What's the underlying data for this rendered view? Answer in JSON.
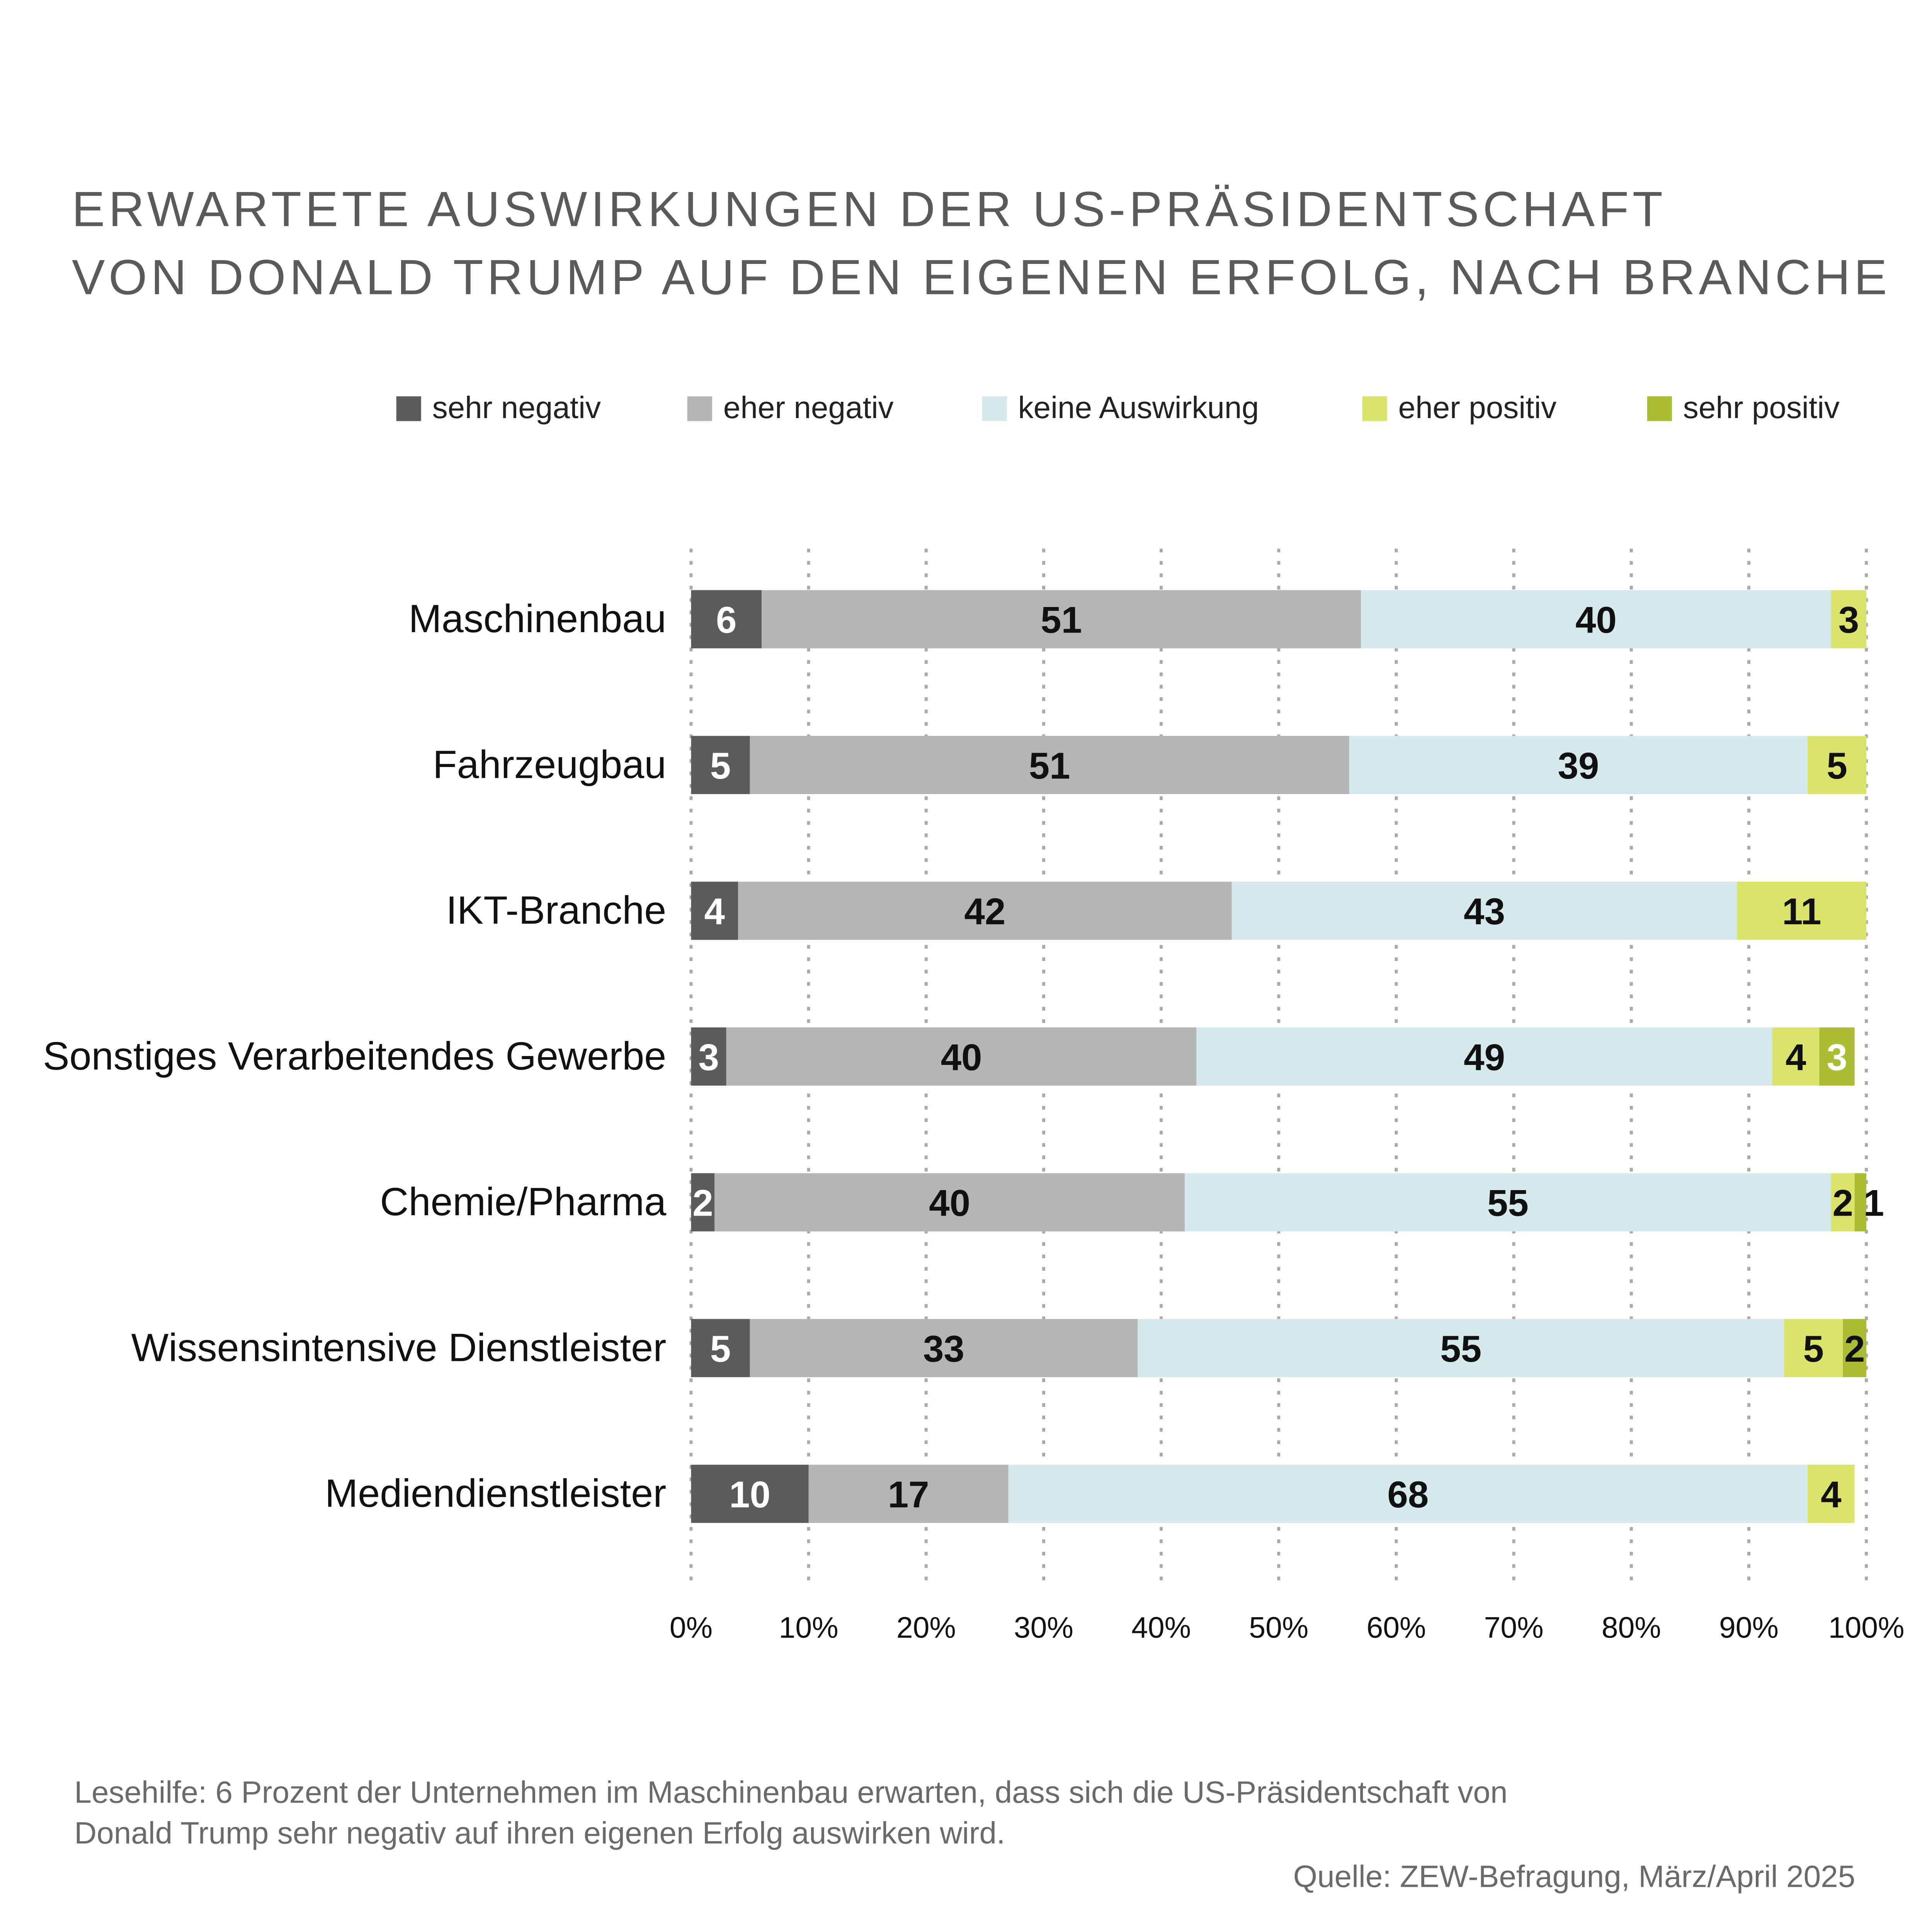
{
  "chart_data": {
    "type": "stacked-barh",
    "title": [
      "ERWARTETE AUSWIRKUNGEN DER US-PRÄSIDENTSCHAFT",
      "VON DONALD TRUMP AUF DEN EIGENEN ERFOLG, NACH BRANCHE"
    ],
    "categories": [
      "Maschinenbau",
      "Fahrzeugbau",
      "IKT-Branche",
      "Sonstiges Verarbeitendes Gewerbe",
      "Chemie/Pharma",
      "Wissensintensive Dienstleister",
      "Mediendienstleister"
    ],
    "series": [
      {
        "name": "sehr negativ",
        "color": "#5b5b5b",
        "values": [
          6,
          5,
          4,
          3,
          2,
          5,
          10
        ]
      },
      {
        "name": "eher negativ",
        "color": "#b5b5b5",
        "values": [
          51,
          51,
          42,
          40,
          40,
          33,
          17
        ]
      },
      {
        "name": "keine Auswirkung",
        "color": "#d5e8ec",
        "values": [
          40,
          39,
          43,
          49,
          55,
          55,
          68
        ]
      },
      {
        "name": "eher positiv",
        "color": "#dce36a",
        "values": [
          3,
          5,
          11,
          4,
          2,
          5,
          4
        ]
      },
      {
        "name": "sehr positiv",
        "color": "#aabd35",
        "values": [
          null,
          null,
          null,
          3,
          1,
          2,
          null
        ]
      }
    ],
    "xlim": [
      0,
      100
    ],
    "xticks": [
      {
        "value": 0,
        "label": "0%"
      },
      {
        "value": 10,
        "label": "10%"
      },
      {
        "value": 20,
        "label": "20%"
      },
      {
        "value": 30,
        "label": "30%"
      },
      {
        "value": 40,
        "label": "40%"
      },
      {
        "value": 50,
        "label": "50%"
      },
      {
        "value": 60,
        "label": "60%"
      },
      {
        "value": 70,
        "label": "70%"
      },
      {
        "value": 80,
        "label": "80%"
      },
      {
        "value": 90,
        "label": "90%"
      },
      {
        "value": 100,
        "label": "100%"
      }
    ],
    "grid": true,
    "legend": "top",
    "note": [
      "Lesehilfe: 6 Prozent der Unternehmen im Maschinenbau erwarten, dass sich die US-Präsidentschaft von",
      "Donald Trump sehr negativ auf ihren eigenen Erfolg auswirken wird."
    ],
    "source": "Quelle: ZEW-Befragung, März/April 2025"
  }
}
